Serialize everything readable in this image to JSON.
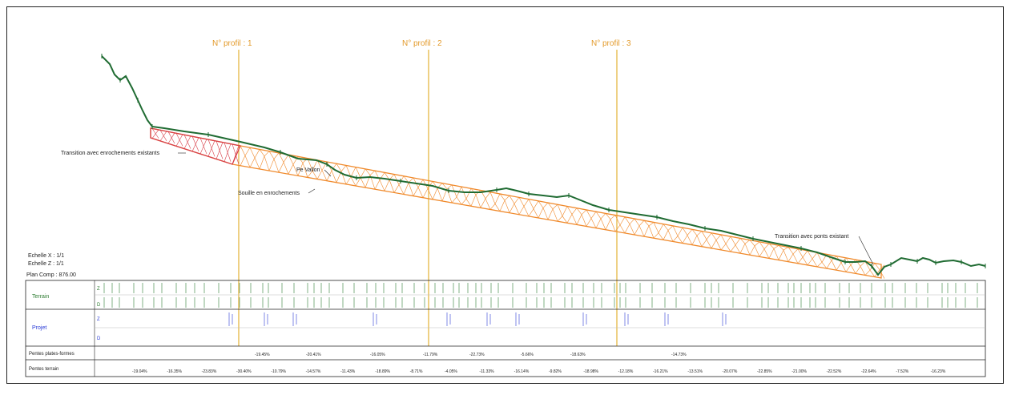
{
  "colors": {
    "terrain": "#1f6b32",
    "riprap": "#f08a2c",
    "riprap_transition": "#d8404a",
    "profile_marker": "#e3b233",
    "profile_label": "#e39a2a",
    "table_terrain_text": "#2e7d32",
    "table_projet_text": "#2a3bd6",
    "frame": "#222222"
  },
  "profiles": [
    {
      "label": "N° profil : 1"
    },
    {
      "label": "N° profil : 2"
    },
    {
      "label": "N° profil : 3"
    }
  ],
  "annotations": {
    "transition_enrochements": "Transition avec enrochements existants",
    "pe_vallon": "Pe Vallon",
    "souille": "Souille en enrochements",
    "transition_ponts": "Transition avec ponts existant"
  },
  "scales": {
    "x": "Echelle X : 1/1",
    "z": "Echelle Z : 1/1",
    "plan_comp": "Plan Comp : 876.00"
  },
  "table": {
    "rows": [
      {
        "label": "Terrain",
        "sub": [
          "Z",
          "D"
        ]
      },
      {
        "label": "Projet",
        "sub": [
          "Z",
          "D"
        ]
      },
      {
        "label": "Pentes plates-formes",
        "sub": []
      },
      {
        "label": "Pentes terrain",
        "sub": []
      }
    ],
    "plate_forme_slopes": [
      "-19.45%",
      "-20.41%",
      "-16.05%",
      "-11.79%",
      "-22.73%",
      "-5.66%",
      "-18.63%",
      "-14.73%"
    ],
    "terrain_slopes": [
      "-19.04%",
      "-16.35%",
      "-23.83%",
      "-30.40%",
      "-10.79%",
      "-14.57%",
      "-11.43%",
      "-18.89%",
      "-8.71%",
      "-4.05%",
      "-11.33%",
      "-16.14%",
      "-9.82%",
      "-18.98%",
      "-12.18%",
      "-16.21%",
      "-13.51%",
      "-20.07%",
      "-22.85%",
      "-21.00%",
      "-22.52%",
      "-22.64%",
      "-7.52%",
      "-16.23%"
    ]
  }
}
